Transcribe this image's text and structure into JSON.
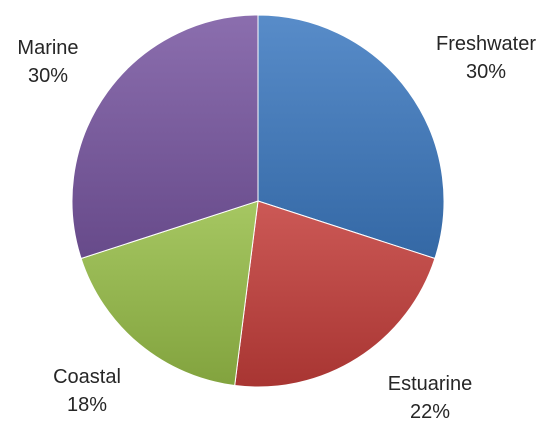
{
  "chart_data": {
    "type": "pie",
    "categories": [
      "Freshwater",
      "Estuarine",
      "Coastal",
      "Marine"
    ],
    "values": [
      30,
      22,
      18,
      30
    ],
    "value_labels": [
      "30%",
      "22%",
      "18%",
      "30%"
    ],
    "legend": "none",
    "colors": [
      "#4A7EBB",
      "#BE4B48",
      "#98B954",
      "#7D60A0"
    ]
  }
}
